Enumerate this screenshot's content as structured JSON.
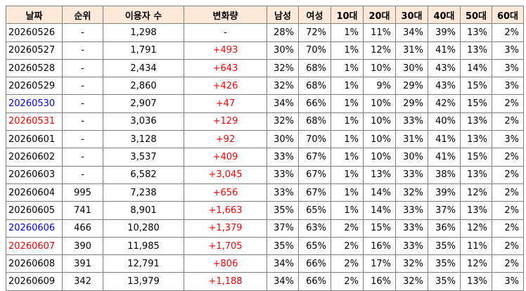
{
  "colors": {
    "header_bg": "#fde9d9",
    "grid": "#7f7f7f",
    "red": "#ff0000",
    "blue": "#0000ff",
    "black": "#000000"
  },
  "headers": [
    "날짜",
    "순위",
    "이용자 수",
    "변화량",
    "남성",
    "여성",
    "10대",
    "20대",
    "30대",
    "40대",
    "50대",
    "60대"
  ],
  "rows": [
    {
      "date": "20260526",
      "date_color": "#000000",
      "rank": "-",
      "users": "1,298",
      "change": "-",
      "change_color": "#000000",
      "male": "28%",
      "female": "72%",
      "a10": "1%",
      "a20": "11%",
      "a30": "34%",
      "a40": "39%",
      "a50": "13%",
      "a60": "2%"
    },
    {
      "date": "20260527",
      "date_color": "#000000",
      "rank": "-",
      "users": "1,791",
      "change": "+493",
      "change_color": "#ff0000",
      "male": "30%",
      "female": "70%",
      "a10": "1%",
      "a20": "12%",
      "a30": "31%",
      "a40": "41%",
      "a50": "13%",
      "a60": "3%"
    },
    {
      "date": "20260528",
      "date_color": "#000000",
      "rank": "-",
      "users": "2,434",
      "change": "+643",
      "change_color": "#ff0000",
      "male": "32%",
      "female": "68%",
      "a10": "1%",
      "a20": "10%",
      "a30": "30%",
      "a40": "43%",
      "a50": "14%",
      "a60": "3%"
    },
    {
      "date": "20260529",
      "date_color": "#000000",
      "rank": "-",
      "users": "2,860",
      "change": "+426",
      "change_color": "#ff0000",
      "male": "32%",
      "female": "68%",
      "a10": "1%",
      "a20": "9%",
      "a30": "29%",
      "a40": "43%",
      "a50": "15%",
      "a60": "3%"
    },
    {
      "date": "20260530",
      "date_color": "#0000ff",
      "rank": "-",
      "users": "2,907",
      "change": "+47",
      "change_color": "#ff0000",
      "male": "34%",
      "female": "66%",
      "a10": "1%",
      "a20": "10%",
      "a30": "29%",
      "a40": "42%",
      "a50": "15%",
      "a60": "2%"
    },
    {
      "date": "20260531",
      "date_color": "#ff0000",
      "rank": "-",
      "users": "3,036",
      "change": "+129",
      "change_color": "#ff0000",
      "male": "32%",
      "female": "68%",
      "a10": "1%",
      "a20": "10%",
      "a30": "33%",
      "a40": "40%",
      "a50": "13%",
      "a60": "2%"
    },
    {
      "date": "20260601",
      "date_color": "#000000",
      "rank": "-",
      "users": "3,128",
      "change": "+92",
      "change_color": "#ff0000",
      "male": "30%",
      "female": "70%",
      "a10": "1%",
      "a20": "10%",
      "a30": "31%",
      "a40": "41%",
      "a50": "13%",
      "a60": "3%"
    },
    {
      "date": "20260602",
      "date_color": "#000000",
      "rank": "-",
      "users": "3,537",
      "change": "+409",
      "change_color": "#ff0000",
      "male": "33%",
      "female": "67%",
      "a10": "1%",
      "a20": "10%",
      "a30": "30%",
      "a40": "41%",
      "a50": "15%",
      "a60": "2%"
    },
    {
      "date": "20260603",
      "date_color": "#000000",
      "rank": "-",
      "users": "6,582",
      "change": "+3,045",
      "change_color": "#ff0000",
      "male": "33%",
      "female": "67%",
      "a10": "1%",
      "a20": "13%",
      "a30": "33%",
      "a40": "38%",
      "a50": "13%",
      "a60": "2%"
    },
    {
      "date": "20260604",
      "date_color": "#000000",
      "rank": "995",
      "users": "7,238",
      "change": "+656",
      "change_color": "#ff0000",
      "male": "33%",
      "female": "67%",
      "a10": "1%",
      "a20": "14%",
      "a30": "32%",
      "a40": "39%",
      "a50": "12%",
      "a60": "2%"
    },
    {
      "date": "20260605",
      "date_color": "#000000",
      "rank": "741",
      "users": "8,901",
      "change": "+1,663",
      "change_color": "#ff0000",
      "male": "35%",
      "female": "65%",
      "a10": "1%",
      "a20": "14%",
      "a30": "33%",
      "a40": "37%",
      "a50": "13%",
      "a60": "2%"
    },
    {
      "date": "20260606",
      "date_color": "#0000ff",
      "rank": "466",
      "users": "10,280",
      "change": "+1,379",
      "change_color": "#ff0000",
      "male": "37%",
      "female": "63%",
      "a10": "2%",
      "a20": "15%",
      "a30": "33%",
      "a40": "36%",
      "a50": "12%",
      "a60": "2%"
    },
    {
      "date": "20260607",
      "date_color": "#ff0000",
      "rank": "390",
      "users": "11,985",
      "change": "+1,705",
      "change_color": "#ff0000",
      "male": "35%",
      "female": "65%",
      "a10": "2%",
      "a20": "16%",
      "a30": "33%",
      "a40": "35%",
      "a50": "11%",
      "a60": "2%"
    },
    {
      "date": "20260608",
      "date_color": "#000000",
      "rank": "391",
      "users": "12,791",
      "change": "+806",
      "change_color": "#ff0000",
      "male": "34%",
      "female": "66%",
      "a10": "2%",
      "a20": "17%",
      "a30": "32%",
      "a40": "35%",
      "a50": "12%",
      "a60": "2%"
    },
    {
      "date": "20260609",
      "date_color": "#000000",
      "rank": "342",
      "users": "13,979",
      "change": "+1,188",
      "change_color": "#ff0000",
      "male": "34%",
      "female": "66%",
      "a10": "2%",
      "a20": "16%",
      "a30": "32%",
      "a40": "35%",
      "a50": "13%",
      "a60": "3%"
    }
  ]
}
